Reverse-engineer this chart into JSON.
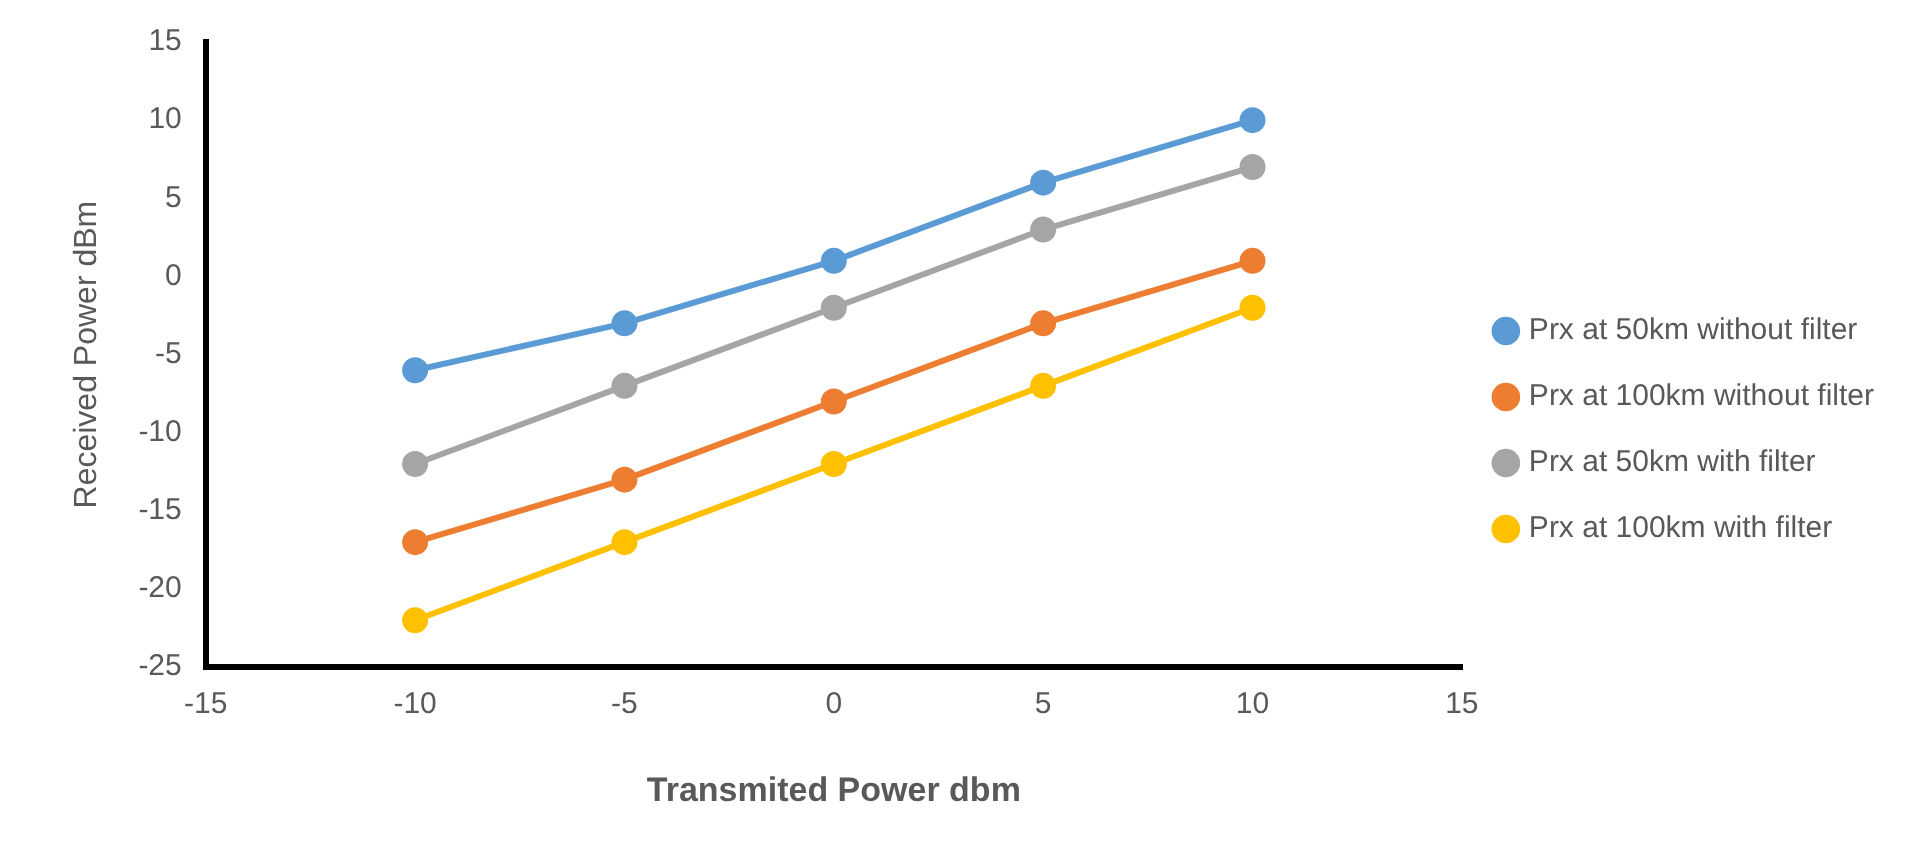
{
  "chart_data": {
    "type": "line",
    "xlabel": "Transmited Power dbm",
    "ylabel": "Received Power dBm",
    "x": [
      -10,
      -5,
      0,
      5,
      10
    ],
    "series": [
      {
        "name": "Prx at 50km without filter",
        "color": "#5b9bd5",
        "values": [
          -6,
          -3,
          1,
          6,
          10
        ]
      },
      {
        "name": "Prx at 100km without filter",
        "color": "#ed7d31",
        "values": [
          -17,
          -13,
          -8,
          -3,
          1
        ]
      },
      {
        "name": "Prx at 50km with filter",
        "color": "#a5a5a5",
        "values": [
          -12,
          -7,
          -2,
          3,
          7
        ]
      },
      {
        "name": "Prx at 100km with filter",
        "color": "#ffc000",
        "values": [
          -22,
          -17,
          -12,
          -7,
          -2
        ]
      }
    ],
    "xlim": [
      -15,
      15
    ],
    "xticks": [
      -15,
      -10,
      -5,
      0,
      5,
      10,
      15
    ],
    "ylim": [
      -25,
      15
    ],
    "yticks": [
      -25,
      -20,
      -15,
      -10,
      -5,
      0,
      5,
      10,
      15
    ],
    "grid": false,
    "legend": "right",
    "marker": "circle",
    "line_style": "solid"
  }
}
